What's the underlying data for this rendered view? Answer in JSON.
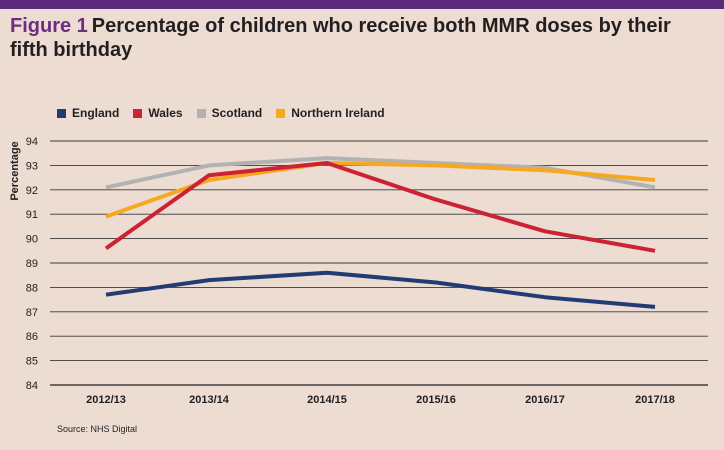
{
  "figure": {
    "number_label": "Figure 1",
    "title": "Percentage of children who receive both MMR doses by their fifth birthday"
  },
  "source": "Source: NHS Digital",
  "chart_data": {
    "type": "line",
    "ylabel": "Percentage",
    "xlabel": "",
    "ylim": [
      84,
      94
    ],
    "yticks": [
      84,
      85,
      86,
      87,
      88,
      89,
      90,
      91,
      92,
      93,
      94
    ],
    "grid": true,
    "legend_position": "top-left",
    "categories": [
      "2012/13",
      "2013/14",
      "2014/15",
      "2015/16",
      "2016/17",
      "2017/18"
    ],
    "series": [
      {
        "name": "England",
        "color": "#233b74",
        "values": [
          87.7,
          88.3,
          88.6,
          88.2,
          87.6,
          87.2
        ]
      },
      {
        "name": "Wales",
        "color": "#cc2233",
        "values": [
          89.6,
          92.6,
          93.1,
          91.6,
          90.3,
          89.5
        ]
      },
      {
        "name": "Scotland",
        "color": "#b3b2b2",
        "values": [
          92.1,
          93.0,
          93.3,
          93.1,
          92.9,
          92.1
        ]
      },
      {
        "name": "Northern Ireland",
        "color": "#f6a821",
        "values": [
          90.9,
          92.4,
          93.1,
          93.0,
          92.8,
          92.4
        ]
      }
    ]
  }
}
